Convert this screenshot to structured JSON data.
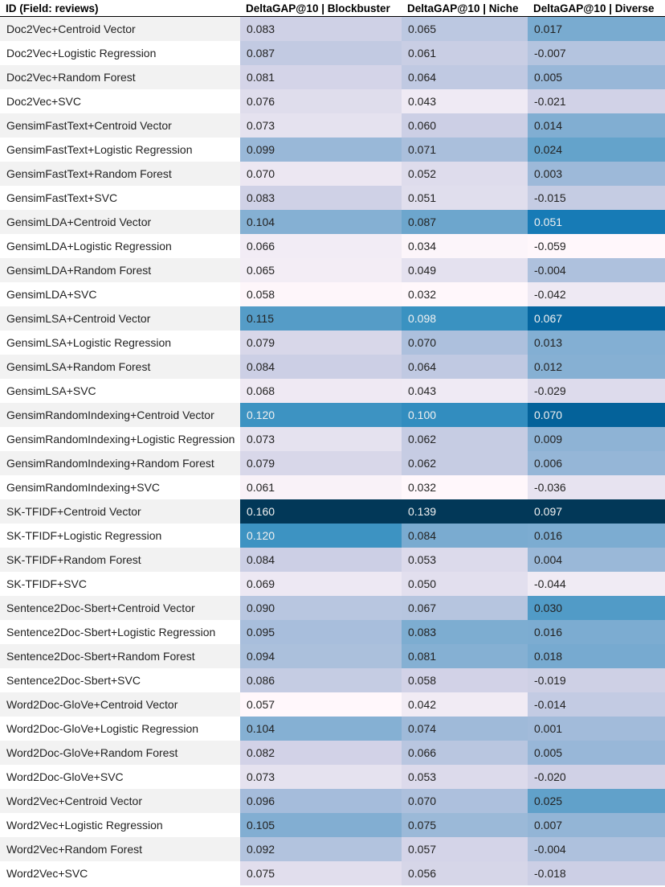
{
  "chart_data": {
    "type": "table",
    "columns": [
      "ID (Field: reviews)",
      "DeltaGAP@10 | Blockbuster",
      "DeltaGAP@10 | Niche",
      "DeltaGAP@10 | Diverse"
    ],
    "rows": [
      [
        "Doc2Vec+Centroid Vector",
        "0.083",
        "0.065",
        "0.017"
      ],
      [
        "Doc2Vec+Logistic Regression",
        "0.087",
        "0.061",
        "-0.007"
      ],
      [
        "Doc2Vec+Random Forest",
        "0.081",
        "0.064",
        "0.005"
      ],
      [
        "Doc2Vec+SVC",
        "0.076",
        "0.043",
        "-0.021"
      ],
      [
        "GensimFastText+Centroid Vector",
        "0.073",
        "0.060",
        "0.014"
      ],
      [
        "GensimFastText+Logistic Regression",
        "0.099",
        "0.071",
        "0.024"
      ],
      [
        "GensimFastText+Random Forest",
        "0.070",
        "0.052",
        "0.003"
      ],
      [
        "GensimFastText+SVC",
        "0.083",
        "0.051",
        "-0.015"
      ],
      [
        "GensimLDA+Centroid Vector",
        "0.104",
        "0.087",
        "0.051"
      ],
      [
        "GensimLDA+Logistic Regression",
        "0.066",
        "0.034",
        "-0.059"
      ],
      [
        "GensimLDA+Random Forest",
        "0.065",
        "0.049",
        "-0.004"
      ],
      [
        "GensimLDA+SVC",
        "0.058",
        "0.032",
        "-0.042"
      ],
      [
        "GensimLSA+Centroid Vector",
        "0.115",
        "0.098",
        "0.067"
      ],
      [
        "GensimLSA+Logistic Regression",
        "0.079",
        "0.070",
        "0.013"
      ],
      [
        "GensimLSA+Random Forest",
        "0.084",
        "0.064",
        "0.012"
      ],
      [
        "GensimLSA+SVC",
        "0.068",
        "0.043",
        "-0.029"
      ],
      [
        "GensimRandomIndexing+Centroid Vector",
        "0.120",
        "0.100",
        "0.070"
      ],
      [
        "GensimRandomIndexing+Logistic Regression",
        "0.073",
        "0.062",
        "0.009"
      ],
      [
        "GensimRandomIndexing+Random Forest",
        "0.079",
        "0.062",
        "0.006"
      ],
      [
        "GensimRandomIndexing+SVC",
        "0.061",
        "0.032",
        "-0.036"
      ],
      [
        "SK-TFIDF+Centroid Vector",
        "0.160",
        "0.139",
        "0.097"
      ],
      [
        "SK-TFIDF+Logistic Regression",
        "0.120",
        "0.084",
        "0.016"
      ],
      [
        "SK-TFIDF+Random Forest",
        "0.084",
        "0.053",
        "0.004"
      ],
      [
        "SK-TFIDF+SVC",
        "0.069",
        "0.050",
        "-0.044"
      ],
      [
        "Sentence2Doc-Sbert+Centroid Vector",
        "0.090",
        "0.067",
        "0.030"
      ],
      [
        "Sentence2Doc-Sbert+Logistic Regression",
        "0.095",
        "0.083",
        "0.016"
      ],
      [
        "Sentence2Doc-Sbert+Random Forest",
        "0.094",
        "0.081",
        "0.018"
      ],
      [
        "Sentence2Doc-Sbert+SVC",
        "0.086",
        "0.058",
        "-0.019"
      ],
      [
        "Word2Doc-GloVe+Centroid Vector",
        "0.057",
        "0.042",
        "-0.014"
      ],
      [
        "Word2Doc-GloVe+Logistic Regression",
        "0.104",
        "0.074",
        "0.001"
      ],
      [
        "Word2Doc-GloVe+Random Forest",
        "0.082",
        "0.066",
        "0.005"
      ],
      [
        "Word2Doc-GloVe+SVC",
        "0.073",
        "0.053",
        "-0.020"
      ],
      [
        "Word2Vec+Centroid Vector",
        "0.096",
        "0.070",
        "0.025"
      ],
      [
        "Word2Vec+Logistic Regression",
        "0.105",
        "0.075",
        "0.007"
      ],
      [
        "Word2Vec+Random Forest",
        "0.092",
        "0.057",
        "-0.004"
      ],
      [
        "Word2Vec+SVC",
        "0.075",
        "0.056",
        "-0.018"
      ]
    ],
    "colormap": [
      "#fff7fb",
      "#ece7f2",
      "#d0d1e6",
      "#a6bddb",
      "#74a9cf",
      "#3690c0",
      "#0570b0",
      "#045a8d",
      "#023858"
    ]
  }
}
